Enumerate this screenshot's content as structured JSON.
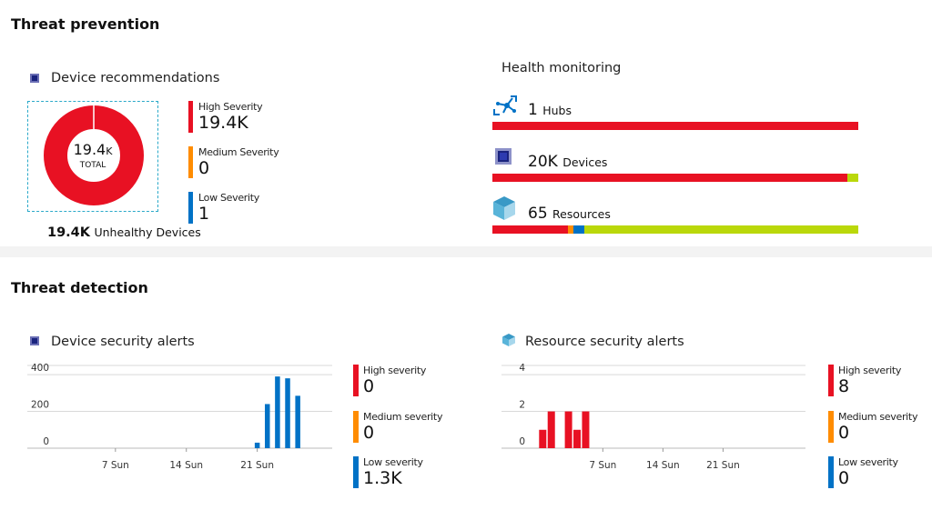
{
  "colors": {
    "high": "#e81123",
    "medium": "#ff8c00",
    "low": "#0072c6",
    "healthy": "#bad80a",
    "grid": "#d9d9d9"
  },
  "threat_prevention": {
    "title": "Threat prevention",
    "device_recommendations": {
      "title": "Device recommendations",
      "icon": "chip-icon",
      "donut": {
        "value": "19.4",
        "unit": "K",
        "label": "TOTAL",
        "slices": [
          {
            "name": "High Severity",
            "value": 19400
          },
          {
            "name": "Medium Severity",
            "value": 0
          },
          {
            "name": "Low Severity",
            "value": 1
          }
        ]
      },
      "legend": [
        {
          "label": "High Severity",
          "value": "19.4K",
          "color": "#e81123"
        },
        {
          "label": "Medium Severity",
          "value": "0",
          "color": "#ff8c00"
        },
        {
          "label": "Low Severity",
          "value": "1",
          "color": "#0072c6"
        }
      ],
      "unhealthy_value": "19.4K",
      "unhealthy_label": "Unhealthy Devices"
    },
    "health_monitoring": {
      "title": "Health monitoring",
      "items": [
        {
          "icon": "iot-hub-icon",
          "value": "1",
          "label": "Hubs",
          "segments": [
            {
              "color": "#e81123",
              "pct": 100
            }
          ]
        },
        {
          "icon": "chip-icon",
          "value": "20K",
          "label": "Devices",
          "segments": [
            {
              "color": "#e81123",
              "pct": 97
            },
            {
              "color": "#bad80a",
              "pct": 3
            }
          ]
        },
        {
          "icon": "cube-icon",
          "value": "65",
          "label": "Resources",
          "segments": [
            {
              "color": "#e81123",
              "pct": 20.6
            },
            {
              "color": "#ff8c00",
              "pct": 1.5
            },
            {
              "color": "#0072c6",
              "pct": 3
            },
            {
              "color": "#bad80a",
              "pct": 74.9
            }
          ]
        }
      ]
    }
  },
  "threat_detection": {
    "title": "Threat detection",
    "device_alerts": {
      "title": "Device security alerts",
      "icon": "chip-icon",
      "legend": [
        {
          "label": "High severity",
          "value": "0",
          "color": "#e81123"
        },
        {
          "label": "Medium severity",
          "value": "0",
          "color": "#ff8c00"
        },
        {
          "label": "Low severity",
          "value": "1.3K",
          "color": "#0072c6"
        }
      ]
    },
    "resource_alerts": {
      "title": "Resource security alerts",
      "icon": "cube-icon",
      "legend": [
        {
          "label": "High severity",
          "value": "8",
          "color": "#e81123"
        },
        {
          "label": "Medium severity",
          "value": "0",
          "color": "#ff8c00"
        },
        {
          "label": "Low severity",
          "value": "0",
          "color": "#0072c6"
        }
      ]
    }
  },
  "chart_data": [
    {
      "type": "bar",
      "color": "#0072c6",
      "x": [
        21,
        22,
        23,
        24,
        25
      ],
      "values": [
        30,
        240,
        390,
        380,
        285
      ],
      "xticks": [
        {
          "x": 7,
          "label": "7 Sun"
        },
        {
          "x": 14,
          "label": "14 Sun"
        },
        {
          "x": 21,
          "label": "21 Sun"
        }
      ],
      "yticks": [
        0,
        200,
        400
      ],
      "xlim": [
        -1.7,
        28.4
      ],
      "ylim": [
        0,
        450
      ],
      "grid": true
    },
    {
      "type": "bar",
      "color": "#e81123",
      "x": [
        0,
        1,
        3,
        4,
        5
      ],
      "values": [
        1,
        2,
        2,
        1,
        2
      ],
      "xticks": [
        {
          "x": 7,
          "label": "7 Sun"
        },
        {
          "x": 14,
          "label": "14 Sun"
        },
        {
          "x": 21,
          "label": "21 Sun"
        }
      ],
      "yticks": [
        0,
        2,
        4
      ],
      "xlim": [
        -4.8,
        30.6
      ],
      "ylim": [
        0,
        4.5
      ],
      "grid": true
    }
  ]
}
